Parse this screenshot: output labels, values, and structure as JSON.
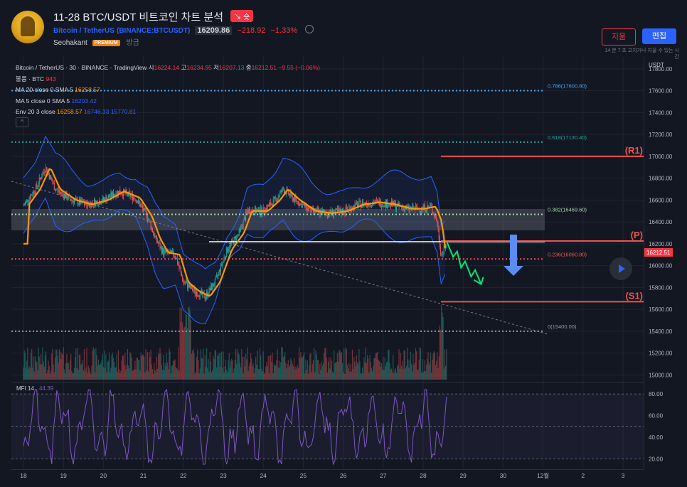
{
  "header": {
    "title": "11-28 BTC/USDT 비트코인 차트 분석",
    "short_badge": "↘ 숏",
    "symbol_name": "Bitcoin / TetherUS",
    "symbol_exchange": "(BINANCE:BTCUSDT)",
    "price": "16209.86",
    "change": "−218.92",
    "change_pct": "−1.33%",
    "author": "Seohakant",
    "author_badge": "PREMIUM",
    "published": "방금",
    "delete_button": "지움",
    "edit_button": "편집",
    "edit_note": "14 분 7 초 고치거나 지울 수 있는 시간"
  },
  "legend": {
    "main_title": "Bitcoin / TetherUS · 30 · BINANCE · TradingView",
    "open_label": "시",
    "open": "16224.14",
    "high_label": "고",
    "high": "16234.95",
    "low_label": "저",
    "low": "16207.13",
    "close_label": "종",
    "close": "16212.51",
    "change": "−9.55 (−0.06%)",
    "volume_label": "볼륨 · BTC",
    "volume": "943",
    "ma20_label": "MA 20 close 0 SMA 5",
    "ma20": "16258.57",
    "ma5_label": "MA 5 close 0 SMA 5",
    "ma5": "16203.42",
    "env_label": "Env 20 3 close",
    "env_basis": "16258.57",
    "env_upper": "16746.33",
    "env_lower": "15770.81",
    "collapse": "^"
  },
  "mfi_label": "MFI 14",
  "mfi_value": "44.39",
  "colors": {
    "bg": "#131722",
    "up": "#26a69a",
    "down": "#ef5350",
    "ma": "#ff9800",
    "band": "#2962ff",
    "mfi": "#7e57c2"
  },
  "chart_data": {
    "type": "candlestick",
    "currency": "USDT",
    "x_ticks": [
      "18",
      "19",
      "20",
      "21",
      "22",
      "23",
      "24",
      "25",
      "26",
      "27",
      "28",
      "29",
      "30",
      "12월",
      "2",
      "3"
    ],
    "y_ticks": [
      "17800.00",
      "17600.00",
      "17400.00",
      "17200.00",
      "17000.00",
      "16800.00",
      "16600.00",
      "16400.00",
      "16200.00",
      "16000.00",
      "15800.00",
      "15600.00",
      "15400.00",
      "15200.00",
      "15000.00"
    ],
    "ylim": [
      14970,
      17910
    ],
    "last_price_label": "16212.51",
    "fib_levels": [
      {
        "label": "0.786(17600.80)",
        "value": 17600.8,
        "color": "#42a5f5"
      },
      {
        "label": "0.618(17130.40)",
        "value": 17130.4,
        "color": "#26a69a"
      },
      {
        "label": "0.382(16469.60)",
        "value": 16469.6,
        "color": "#a5d6a7"
      },
      {
        "label": "0.236(16060.80)",
        "value": 16060.8,
        "color": "#ef5350"
      },
      {
        "label": "0(15400.00)",
        "value": 15400.0,
        "color": "#9598a1"
      }
    ],
    "key_levels": [
      {
        "label": "(R1)",
        "value": 17000
      },
      {
        "label": "(P)",
        "value": 16225
      },
      {
        "label": "(S1)",
        "value": 15670
      }
    ],
    "mfi_ticks": [
      "80.00",
      "60.00",
      "40.00",
      "20.00"
    ],
    "mfi_ylim": [
      13,
      86
    ],
    "price_path": [
      {
        "day": 18,
        "price": 16550
      },
      {
        "day": 18.3,
        "price": 16700
      },
      {
        "day": 18.55,
        "price": 16900
      },
      {
        "day": 18.8,
        "price": 16700
      },
      {
        "day": 19.2,
        "price": 16600
      },
      {
        "day": 19.6,
        "price": 16560
      },
      {
        "day": 20.0,
        "price": 16600
      },
      {
        "day": 20.4,
        "price": 16680
      },
      {
        "day": 20.8,
        "price": 16620
      },
      {
        "day": 21.1,
        "price": 16450
      },
      {
        "day": 21.3,
        "price": 16250
      },
      {
        "day": 21.5,
        "price": 16120
      },
      {
        "day": 21.8,
        "price": 16100
      },
      {
        "day": 22.0,
        "price": 15850
      },
      {
        "day": 22.3,
        "price": 15760
      },
      {
        "day": 22.55,
        "price": 15720
      },
      {
        "day": 22.8,
        "price": 15850
      },
      {
        "day": 23.1,
        "price": 16150
      },
      {
        "day": 23.4,
        "price": 16300
      },
      {
        "day": 23.6,
        "price": 16500
      },
      {
        "day": 24.0,
        "price": 16500
      },
      {
        "day": 24.3,
        "price": 16600
      },
      {
        "day": 24.5,
        "price": 16700
      },
      {
        "day": 24.8,
        "price": 16600
      },
      {
        "day": 25.2,
        "price": 16500
      },
      {
        "day": 25.6,
        "price": 16480
      },
      {
        "day": 26.0,
        "price": 16500
      },
      {
        "day": 26.4,
        "price": 16560
      },
      {
        "day": 26.8,
        "price": 16580
      },
      {
        "day": 27.2,
        "price": 16560
      },
      {
        "day": 27.6,
        "price": 16520
      },
      {
        "day": 27.9,
        "price": 16520
      },
      {
        "day": 28.2,
        "price": 16540
      },
      {
        "day": 28.35,
        "price": 16400
      },
      {
        "day": 28.45,
        "price": 16100
      },
      {
        "day": 28.6,
        "price": 16200
      }
    ],
    "projection_path": [
      {
        "day": 28.6,
        "price": 16210
      },
      {
        "day": 28.75,
        "price": 16080
      },
      {
        "day": 28.85,
        "price": 16130
      },
      {
        "day": 28.95,
        "price": 15980
      },
      {
        "day": 29.05,
        "price": 16040
      },
      {
        "day": 29.2,
        "price": 15900
      },
      {
        "day": 29.3,
        "price": 15960
      },
      {
        "day": 29.45,
        "price": 15830
      }
    ]
  }
}
